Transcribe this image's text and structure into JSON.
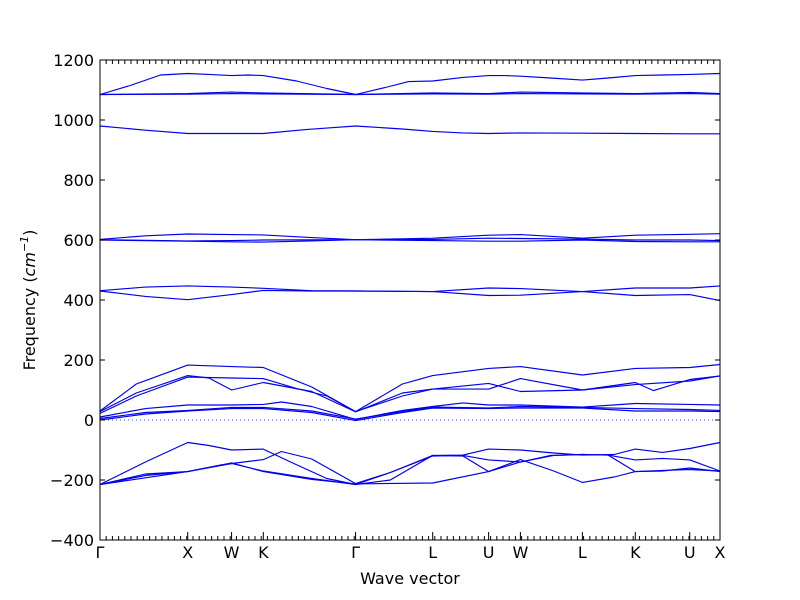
{
  "chart_data": {
    "type": "line",
    "xlabel": "Wave vector",
    "ylabel": "Frequency (cm⁻¹)",
    "ylabel_base": "Frequency (",
    "ylabel_unit": "cm",
    "ylabel_exp": "−1",
    "ylabel_close": ")",
    "ylim": [
      -400,
      1200
    ],
    "yticks": [
      -400,
      -200,
      0,
      200,
      400,
      600,
      800,
      1000,
      1200
    ],
    "ytick_labels": [
      "−400",
      "−200",
      "0",
      "200",
      "400",
      "600",
      "800",
      "1000",
      "1200"
    ],
    "xlim": [
      0,
      20.5
    ],
    "x_ticks": [
      {
        "label": "Γ",
        "x": 0
      },
      {
        "label": "X",
        "x": 2.9
      },
      {
        "label": "W",
        "x": 4.35
      },
      {
        "label": "K",
        "x": 5.4
      },
      {
        "label": "Γ",
        "x": 8.45
      },
      {
        "label": "L",
        "x": 11
      },
      {
        "label": "U",
        "x": 12.85
      },
      {
        "label": "W",
        "x": 13.9
      },
      {
        "label": "L",
        "x": 15.95
      },
      {
        "label": "K",
        "x": 17.7
      },
      {
        "label": "U",
        "x": 19.5
      },
      {
        "label": "X",
        "x": 20.5
      }
    ],
    "zero_line": 0,
    "grid": false,
    "series": [
      {
        "x": [
          0,
          1.0,
          2.0,
          2.9,
          3.6,
          4.35,
          4.9,
          5.4,
          6.5,
          7.5,
          8.45,
          9.5,
          10.2,
          11,
          12.0,
          12.85,
          13.4,
          13.9,
          14.9,
          15.95,
          16.8,
          17.7,
          18.6,
          19.5,
          20.5
        ],
        "y": [
          1085,
          1115,
          1150,
          1155,
          1152,
          1148,
          1150,
          1148,
          1130,
          1105,
          1085,
          1110,
          1128,
          1130,
          1142,
          1148,
          1148,
          1146,
          1140,
          1133,
          1140,
          1148,
          1150,
          1152,
          1155
        ]
      },
      {
        "x": [
          0,
          2.9,
          4.35,
          5.4,
          8.45,
          11,
          12.85,
          13.9,
          15.95,
          17.7,
          19.5,
          20.5
        ],
        "y": [
          1085,
          1088,
          1093,
          1090,
          1085,
          1090,
          1088,
          1093,
          1090,
          1088,
          1092,
          1088
        ]
      },
      {
        "x": [
          0,
          2.9,
          4.35,
          5.4,
          8.45,
          11,
          12.85,
          13.9,
          15.95,
          17.7,
          19.5,
          20.5
        ],
        "y": [
          1085,
          1086,
          1088,
          1087,
          1085,
          1087,
          1086,
          1088,
          1087,
          1086,
          1088,
          1086
        ]
      },
      {
        "x": [
          0,
          1.5,
          2.9,
          4.35,
          5.4,
          6.8,
          8.45,
          10.0,
          11,
          12.0,
          12.85,
          13.9,
          15.95,
          17.7,
          19.5,
          20.5
        ],
        "y": [
          980,
          966,
          955,
          955,
          955,
          968,
          980,
          970,
          962,
          957,
          955,
          957,
          956,
          955,
          954,
          954
        ]
      },
      {
        "x": [
          0,
          1.5,
          2.9,
          4.35,
          5.4,
          7.0,
          8.45,
          10.0,
          11,
          12.85,
          13.9,
          15.95,
          17.7,
          19.5,
          20.5
        ],
        "y": [
          602,
          614,
          620,
          618,
          617,
          608,
          601,
          604,
          606,
          616,
          618,
          606,
          616,
          619,
          621
        ]
      },
      {
        "x": [
          0,
          2.9,
          4.35,
          5.4,
          8.45,
          11,
          12.85,
          13.9,
          15.95,
          17.7,
          19.5,
          20.5
        ],
        "y": [
          601,
          597,
          598,
          600,
          601,
          602,
          606,
          605,
          603,
          600,
          600,
          598
        ]
      },
      {
        "x": [
          0,
          2.9,
          4.35,
          5.4,
          7.0,
          8.45,
          11,
          12.85,
          13.9,
          15.95,
          17.7,
          19.5,
          20.5
        ],
        "y": [
          600,
          596,
          594,
          593,
          597,
          601,
          598,
          596,
          596,
          600,
          595,
          594,
          594
        ]
      },
      {
        "x": [
          0,
          1.5,
          2.9,
          4.35,
          5.4,
          7.0,
          8.45,
          11,
          12.85,
          13.9,
          15.95,
          17.7,
          19.5,
          20.5
        ],
        "y": [
          431,
          443,
          447,
          443,
          439,
          431,
          430,
          428,
          440,
          438,
          428,
          440,
          440,
          447
        ]
      },
      {
        "x": [
          0,
          1.5,
          2.9,
          4.35,
          5.4,
          7.0,
          8.45,
          11,
          12.85,
          13.9,
          15.95,
          17.7,
          19.5,
          20.5
        ],
        "y": [
          430,
          412,
          401,
          418,
          432,
          430,
          430,
          428,
          415,
          416,
          428,
          415,
          418,
          398
        ]
      },
      {
        "x": [
          0,
          1.2,
          2.9,
          4.35,
          5.4,
          7.0,
          8.45,
          10.0,
          11,
          12.85,
          13.9,
          15.95,
          17.7,
          19.5,
          20.5
        ],
        "y": [
          30,
          120,
          183,
          178,
          175,
          110,
          28,
          120,
          148,
          172,
          178,
          150,
          172,
          175,
          185
        ]
      },
      {
        "x": [
          0,
          1.2,
          2.9,
          3.6,
          4.35,
          5.4,
          7.0,
          8.45,
          10.0,
          11,
          12.85,
          13.9,
          15.95,
          17.7,
          18.3,
          19.5,
          20.5
        ],
        "y": [
          28,
          90,
          148,
          140,
          100,
          125,
          95,
          27,
          90,
          103,
          122,
          95,
          100,
          125,
          98,
          135,
          147
        ]
      },
      {
        "x": [
          0,
          1.2,
          2.9,
          4.35,
          5.4,
          6.5,
          7.5,
          8.45,
          10.0,
          11,
          12.85,
          13.9,
          15.95,
          17.7,
          19.5,
          20.5
        ],
        "y": [
          22,
          80,
          143,
          140,
          138,
          105,
          80,
          28,
          80,
          103,
          103,
          138,
          100,
          118,
          130,
          147
        ]
      },
      {
        "x": [
          0,
          1.5,
          2.9,
          4.35,
          5.4,
          6.0,
          7.0,
          8.45,
          10.0,
          11,
          12.0,
          12.85,
          13.9,
          15.95,
          17.7,
          19.5,
          20.5
        ],
        "y": [
          10,
          38,
          50,
          50,
          52,
          60,
          45,
          2,
          32,
          45,
          57,
          50,
          50,
          43,
          55,
          52,
          50
        ]
      },
      {
        "x": [
          0,
          1.5,
          2.9,
          4.35,
          5.4,
          7.0,
          8.45,
          10.0,
          11,
          12.85,
          13.9,
          15.95,
          17.7,
          19.5,
          20.5
        ],
        "y": [
          5,
          25,
          32,
          42,
          42,
          30,
          3,
          28,
          43,
          40,
          45,
          42,
          38,
          35,
          32
        ]
      },
      {
        "x": [
          0,
          1.5,
          2.9,
          4.35,
          5.4,
          7.0,
          8.45,
          10.0,
          11,
          12.85,
          13.9,
          15.95,
          17.7,
          19.5,
          20.5
        ],
        "y": [
          0,
          20,
          30,
          38,
          38,
          25,
          -2,
          25,
          40,
          38,
          40,
          40,
          30,
          30,
          28
        ]
      },
      {
        "x": [
          0,
          1.5,
          2.9,
          3.6,
          4.35,
          5.4,
          6.3,
          7.5,
          8.45,
          9.6,
          11,
          12.0,
          12.85,
          13.9,
          15.0,
          15.95,
          17.0,
          17.7,
          18.6,
          19.5,
          20.5
        ],
        "y": [
          -215,
          -140,
          -75,
          -85,
          -100,
          -97,
          -140,
          -195,
          -215,
          -175,
          -118,
          -117,
          -97,
          -100,
          -110,
          -117,
          -115,
          -97,
          -108,
          -95,
          -75
        ]
      },
      {
        "x": [
          0,
          1.5,
          2.9,
          4.35,
          5.4,
          6.0,
          7.0,
          8.45,
          9.6,
          11,
          12.0,
          12.85,
          13.9,
          14.9,
          15.95,
          16.8,
          17.7,
          18.6,
          19.5,
          20.5
        ],
        "y": [
          -215,
          -180,
          -172,
          -145,
          -132,
          -105,
          -130,
          -212,
          -175,
          -120,
          -118,
          -133,
          -140,
          -118,
          -115,
          -117,
          -133,
          -128,
          -133,
          -170
        ]
      },
      {
        "x": [
          0,
          1.5,
          2.9,
          4.0,
          4.35,
          5.4,
          7.0,
          8.45,
          9.6,
          11,
          12.0,
          12.85,
          13.9,
          15.0,
          15.95,
          16.8,
          17.7,
          18.6,
          19.5,
          20.5
        ],
        "y": [
          -215,
          -185,
          -172,
          -150,
          -145,
          -170,
          -195,
          -215,
          -200,
          -118,
          -120,
          -172,
          -140,
          -118,
          -115,
          -117,
          -172,
          -168,
          -165,
          -170
        ]
      },
      {
        "x": [
          0,
          2.9,
          4.35,
          5.4,
          7.0,
          8.45,
          11,
          12.85,
          13.9,
          15.0,
          15.95,
          17.0,
          17.7,
          18.6,
          19.5,
          20.5
        ],
        "y": [
          -215,
          -172,
          -143,
          -172,
          -198,
          -213,
          -210,
          -172,
          -132,
          -170,
          -208,
          -190,
          -172,
          -170,
          -160,
          -172
        ]
      }
    ]
  }
}
